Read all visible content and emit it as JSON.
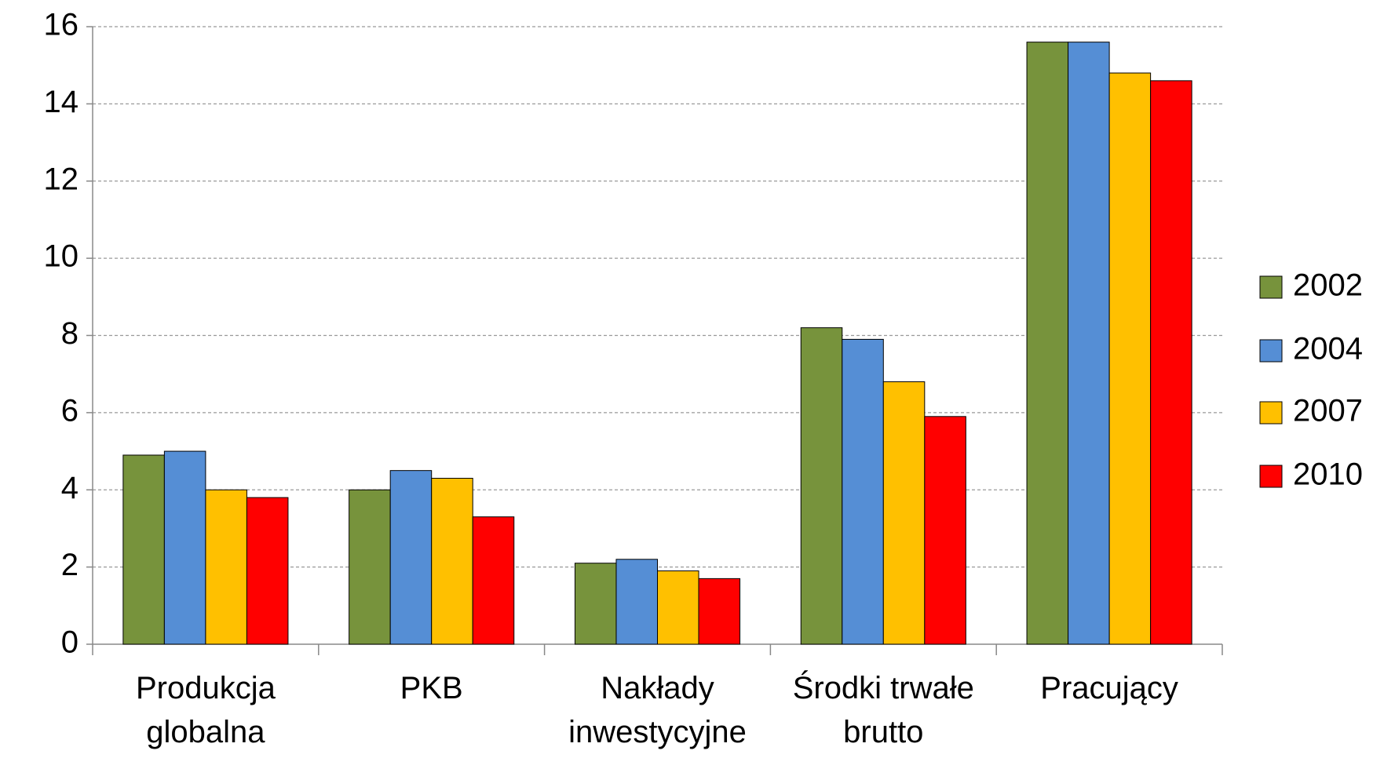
{
  "chart_data": {
    "type": "bar",
    "categories": [
      "Produkcja globalna",
      "PKB",
      "Nakłady inwestycyjne",
      "Środki trwałe brutto",
      "Pracujący"
    ],
    "series": [
      {
        "name": "2002",
        "color": "#77933c",
        "values": [
          4.9,
          4.0,
          2.1,
          8.2,
          15.6
        ]
      },
      {
        "name": "2004",
        "color": "#558ed5",
        "values": [
          5.0,
          4.5,
          2.2,
          7.9,
          15.6
        ]
      },
      {
        "name": "2007",
        "color": "#ffc000",
        "values": [
          4.0,
          4.3,
          1.9,
          6.8,
          14.8
        ]
      },
      {
        "name": "2010",
        "color": "#ff0000",
        "values": [
          3.8,
          3.3,
          1.7,
          5.9,
          14.6
        ]
      }
    ],
    "ylim": [
      0,
      16
    ],
    "yticks": [
      0,
      2,
      4,
      6,
      8,
      10,
      12,
      14,
      16
    ],
    "grid": true,
    "legend": "right"
  }
}
